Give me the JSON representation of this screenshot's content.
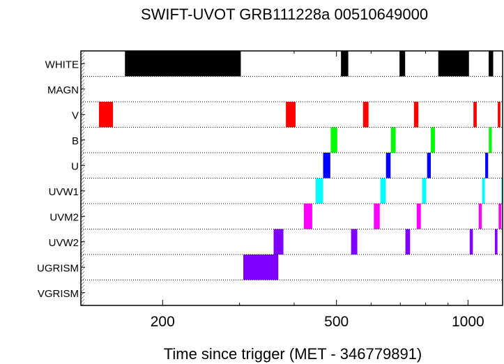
{
  "chart_data": {
    "type": "timeline",
    "title": "SWIFT-UVOT GRB111228a 00510649000",
    "xlabel": "Time since trigger (MET - 346779891)",
    "xscale": "log",
    "xlim": [
      130,
      1200
    ],
    "xticks": [
      {
        "value": 200,
        "label": "200"
      },
      {
        "value": 500,
        "label": "500"
      },
      {
        "value": 1000,
        "label": "1000"
      }
    ],
    "grid": "dotted row separators",
    "rows": [
      {
        "name": "WHITE",
        "color": "#000000",
        "intervals": [
          [
            164,
            302
          ],
          [
            512,
            532
          ],
          [
            697,
            718
          ],
          [
            855,
            1005
          ],
          [
            1115,
            1142
          ]
        ]
      },
      {
        "name": "MAGN",
        "color": "#000000",
        "intervals": []
      },
      {
        "name": "V",
        "color": "#ff0000",
        "intervals": [
          [
            143,
            154
          ],
          [
            383,
            403
          ],
          [
            575,
            592
          ],
          [
            752,
            770
          ],
          [
            1029,
            1047
          ],
          [
            1170,
            1186
          ]
        ]
      },
      {
        "name": "B",
        "color": "#00ff00",
        "intervals": [
          [
            485,
            502
          ],
          [
            666,
            683
          ],
          [
            822,
            840
          ],
          [
            1116,
            1133
          ]
        ]
      },
      {
        "name": "U",
        "color": "#0000ff",
        "intervals": [
          [
            466,
            484
          ],
          [
            649,
            665
          ],
          [
            806,
            822
          ],
          [
            1095,
            1112
          ]
        ]
      },
      {
        "name": "UVW1",
        "color": "#00ffff",
        "intervals": [
          [
            448,
            466
          ],
          [
            630,
            648
          ],
          [
            785,
            802
          ],
          [
            1077,
            1093
          ],
          [
            1193,
            1200
          ]
        ]
      },
      {
        "name": "UVM2",
        "color": "#ff00ff",
        "intervals": [
          [
            421,
            440
          ],
          [
            609,
            628
          ],
          [
            763,
            780
          ],
          [
            1058,
            1075
          ],
          [
            1175,
            1192
          ]
        ]
      },
      {
        "name": "UVW2",
        "color": "#8000ff",
        "intervals": [
          [
            359,
            378
          ],
          [
            540,
            558
          ],
          [
            719,
            737
          ],
          [
            1009,
            1026
          ],
          [
            1152,
            1168
          ]
        ]
      },
      {
        "name": "UGRISM",
        "color": "#8000ff",
        "intervals": [
          [
            306,
            368
          ]
        ]
      },
      {
        "name": "VGRISM",
        "color": "#000000",
        "intervals": []
      }
    ]
  }
}
